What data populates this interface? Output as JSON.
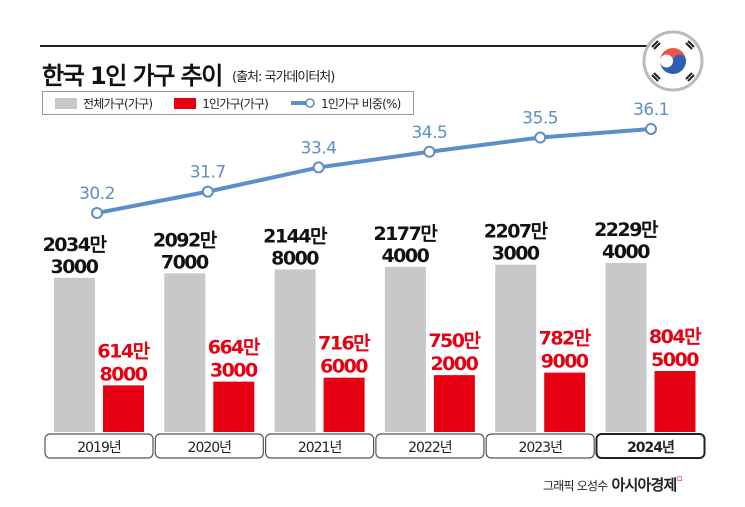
{
  "header": {
    "title": "한국 1인 가구 추이",
    "source": "(출처: 국가데이터처)"
  },
  "credit": {
    "label": "그래픽 오성수",
    "brand": "아시아경제"
  },
  "colors": {
    "total": "#c8c8c8",
    "single": "#e60012",
    "ratio": "#5b8fc7"
  },
  "chart_data": {
    "type": "bar+line",
    "categories": [
      "2019년",
      "2020년",
      "2021년",
      "2022년",
      "2023년",
      "2024년"
    ],
    "legend": [
      "전체가구(가구)",
      "1인가구(가구)",
      "1인가구 비중(%)"
    ],
    "series": [
      {
        "name": "전체가구(가구)",
        "values": [
          20343000,
          20927000,
          21448000,
          21774000,
          22073000,
          22294000
        ],
        "labels": [
          [
            "2034만",
            "3000"
          ],
          [
            "2092만",
            "7000"
          ],
          [
            "2144만",
            "8000"
          ],
          [
            "2177만",
            "4000"
          ],
          [
            "2207만",
            "3000"
          ],
          [
            "2229만",
            "4000"
          ]
        ]
      },
      {
        "name": "1인가구(가구)",
        "values": [
          6148000,
          6643000,
          7166000,
          7502000,
          7829000,
          8045000
        ],
        "labels": [
          [
            "614만",
            "8000"
          ],
          [
            "664만",
            "3000"
          ],
          [
            "716만",
            "6000"
          ],
          [
            "750만",
            "2000"
          ],
          [
            "782만",
            "9000"
          ],
          [
            "804만",
            "5000"
          ]
        ]
      },
      {
        "name": "1인가구 비중(%)",
        "type": "line",
        "values": [
          30.2,
          31.7,
          33.4,
          34.5,
          35.5,
          36.1
        ],
        "labels": [
          "30.2",
          "31.7",
          "33.4",
          "34.5",
          "35.5",
          "36.1"
        ]
      }
    ]
  }
}
